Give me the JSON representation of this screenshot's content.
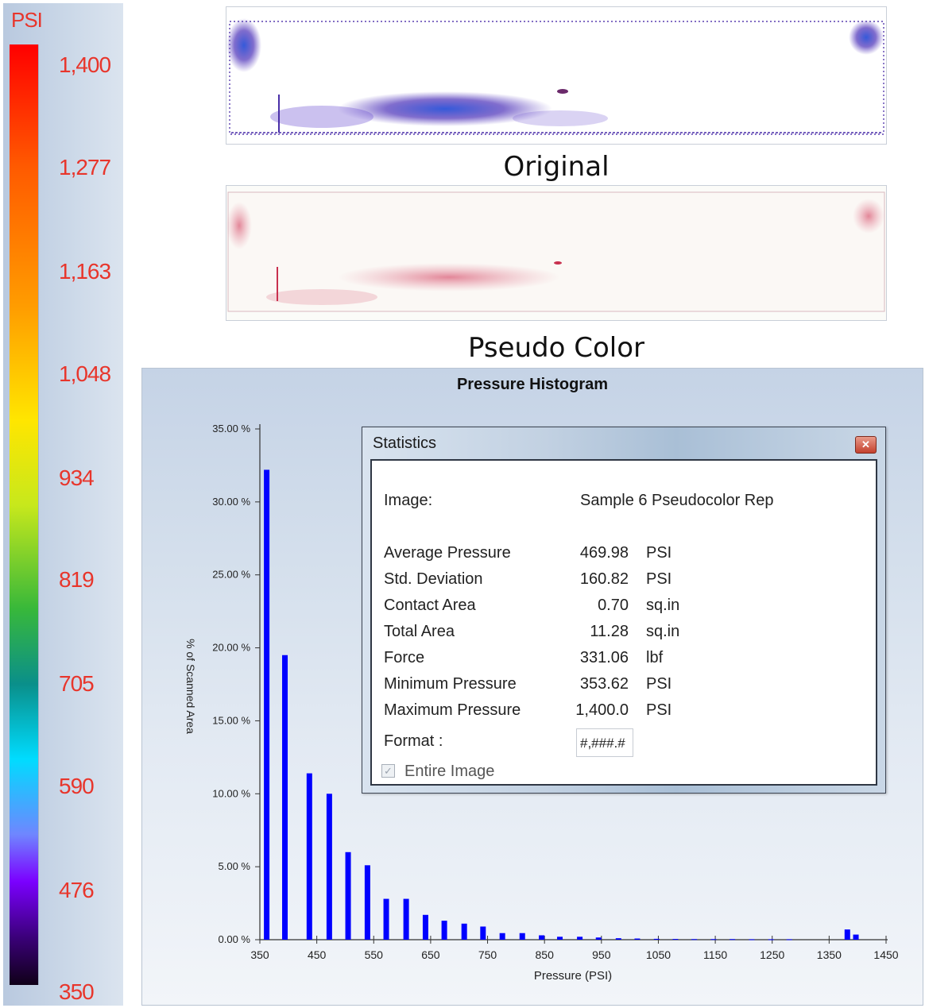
{
  "scale": {
    "unit": "PSI",
    "labels": [
      "1,400",
      "1,277",
      "1,163",
      "1,048",
      "934",
      "819",
      "705",
      "590",
      "476",
      "350"
    ],
    "colors": [
      "#ff0000",
      "#ff9d00",
      "#ffe600",
      "#38b83a",
      "#00dcff",
      "#7b00ff",
      "#100018"
    ]
  },
  "captions": {
    "original": "Original",
    "pseudo": "Pseudo Color"
  },
  "statistics": {
    "title": "Statistics",
    "close_icon": "close-icon",
    "image_label": "Image:",
    "image_value": "Sample 6 Pseudocolor Rep",
    "rows": [
      {
        "label": "Average Pressure",
        "value": "469.98",
        "unit": "PSI"
      },
      {
        "label": "Std. Deviation",
        "value": "160.82",
        "unit": "PSI"
      },
      {
        "label": "Contact Area",
        "value": "0.70",
        "unit": "sq.in"
      },
      {
        "label": "Total Area",
        "value": "11.28",
        "unit": "sq.in"
      },
      {
        "label": "Force",
        "value": "331.06",
        "unit": "lbf"
      },
      {
        "label": "Minimum Pressure",
        "value": "353.62",
        "unit": "PSI"
      },
      {
        "label": "Maximum Pressure",
        "value": "1,400.0",
        "unit": "PSI"
      }
    ],
    "format_label": "Format :",
    "format_value": "#,###.#",
    "entire_image_label": "Entire Image",
    "entire_image_checked": true
  },
  "chart_data": {
    "type": "bar",
    "title": "Pressure Histogram",
    "xlabel": "Pressure (PSI)",
    "ylabel": "% of Scanned Area",
    "xlim": [
      350,
      1450
    ],
    "ylim": [
      0,
      35
    ],
    "x_ticks": [
      "350",
      "450",
      "550",
      "650",
      "750",
      "850",
      "950",
      "1050",
      "1150",
      "1250",
      "1350",
      "1450"
    ],
    "y_ticks": [
      "0.00 %",
      "5.00 %",
      "10.00 %",
      "15.00 %",
      "20.00 %",
      "25.00 %",
      "30.00 %",
      "35.00 %"
    ],
    "bar_color": "#0000ff",
    "x": [
      362,
      394,
      437,
      472,
      505,
      539,
      572,
      607,
      641,
      674,
      709,
      742,
      776,
      811,
      845,
      877,
      912,
      945,
      980,
      1013,
      1047,
      1080,
      1113,
      1147,
      1180,
      1214,
      1248,
      1280,
      1382,
      1397
    ],
    "values": [
      32.2,
      19.5,
      11.4,
      10.0,
      6.0,
      5.1,
      2.8,
      2.8,
      1.7,
      1.3,
      1.1,
      0.9,
      0.45,
      0.45,
      0.3,
      0.2,
      0.2,
      0.15,
      0.1,
      0.08,
      0.06,
      0.05,
      0.04,
      0.04,
      0.04,
      0.03,
      0.03,
      0.03,
      0.7,
      0.35
    ]
  }
}
